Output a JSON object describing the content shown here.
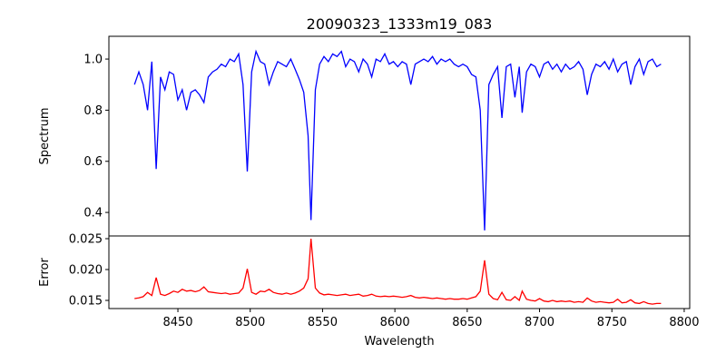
{
  "chart_data": {
    "type": "line",
    "title": "20090323_1333m19_083",
    "xlabel": "Wavelength",
    "xlim": [
      8402.3,
      8803.8
    ],
    "xticks": [
      8450,
      8500,
      8550,
      8600,
      8650,
      8700,
      8750,
      8800
    ],
    "xtick_labels": [
      "8450",
      "8500",
      "8550",
      "8600",
      "8650",
      "8700",
      "8750",
      "8800"
    ],
    "x": [
      8420,
      8423,
      8426,
      8429,
      8432,
      8435,
      8438,
      8441,
      8444,
      8447,
      8450,
      8453,
      8456,
      8459,
      8462,
      8465,
      8468,
      8471,
      8474,
      8477,
      8480,
      8483,
      8486,
      8489,
      8492,
      8495,
      8498,
      8501,
      8504,
      8507,
      8510,
      8513,
      8516,
      8519,
      8522,
      8525,
      8528,
      8531,
      8534,
      8537,
      8540,
      8542,
      8545,
      8548,
      8551,
      8554,
      8557,
      8560,
      8563,
      8566,
      8569,
      8572,
      8575,
      8578,
      8581,
      8584,
      8587,
      8590,
      8593,
      8596,
      8599,
      8602,
      8605,
      8608,
      8611,
      8614,
      8617,
      8620,
      8623,
      8626,
      8629,
      8632,
      8635,
      8638,
      8641,
      8644,
      8647,
      8650,
      8653,
      8656,
      8659,
      8662,
      8665,
      8668,
      8671,
      8674,
      8677,
      8680,
      8683,
      8686,
      8688,
      8691,
      8694,
      8697,
      8700,
      8703,
      8706,
      8709,
      8712,
      8715,
      8718,
      8721,
      8724,
      8727,
      8730,
      8733,
      8736,
      8739,
      8742,
      8745,
      8748,
      8751,
      8754,
      8757,
      8760,
      8763,
      8766,
      8769,
      8772,
      8775,
      8778,
      8781,
      8784
    ],
    "panels": [
      {
        "name": "Spectrum",
        "ylabel": "Spectrum",
        "color": "#0000ff",
        "ylim": [
          0.308,
          1.089
        ],
        "yticks": [
          0.4,
          0.6,
          0.8,
          1.0
        ],
        "ytick_labels": [
          "0.4",
          "0.6",
          "0.8",
          "1.0"
        ],
        "y": [
          0.9,
          0.95,
          0.9,
          0.8,
          0.99,
          0.57,
          0.93,
          0.88,
          0.95,
          0.94,
          0.84,
          0.88,
          0.8,
          0.87,
          0.88,
          0.86,
          0.83,
          0.93,
          0.95,
          0.96,
          0.98,
          0.97,
          1.0,
          0.99,
          1.02,
          0.9,
          0.56,
          0.95,
          1.03,
          0.99,
          0.98,
          0.9,
          0.95,
          0.99,
          0.98,
          0.97,
          1.0,
          0.96,
          0.92,
          0.87,
          0.7,
          0.37,
          0.88,
          0.98,
          1.01,
          0.99,
          1.02,
          1.01,
          1.03,
          0.97,
          1.0,
          0.99,
          0.95,
          1.0,
          0.98,
          0.93,
          1.0,
          0.99,
          1.02,
          0.98,
          0.99,
          0.97,
          0.99,
          0.98,
          0.9,
          0.98,
          0.99,
          1.0,
          0.99,
          1.01,
          0.98,
          1.0,
          0.99,
          1.0,
          0.98,
          0.97,
          0.98,
          0.97,
          0.94,
          0.93,
          0.8,
          0.33,
          0.9,
          0.94,
          0.97,
          0.77,
          0.97,
          0.98,
          0.85,
          0.97,
          0.79,
          0.95,
          0.98,
          0.97,
          0.93,
          0.98,
          0.99,
          0.96,
          0.98,
          0.95,
          0.98,
          0.96,
          0.97,
          0.99,
          0.96,
          0.86,
          0.94,
          0.98,
          0.97,
          0.99,
          0.96,
          1.0,
          0.95,
          0.98,
          0.99,
          0.9,
          0.97,
          1.0,
          0.94,
          0.99,
          1.0,
          0.97,
          0.98
        ]
      },
      {
        "name": "Error",
        "ylabel": "Error",
        "color": "#ff0000",
        "ylim": [
          0.01368,
          0.02544
        ],
        "yticks": [
          0.015,
          0.02,
          0.025
        ],
        "ytick_labels": [
          "0.015",
          "0.020",
          "0.025"
        ],
        "y": [
          0.0153,
          0.0154,
          0.0156,
          0.0163,
          0.0158,
          0.0187,
          0.016,
          0.0158,
          0.0161,
          0.0165,
          0.0163,
          0.0168,
          0.0165,
          0.0166,
          0.0164,
          0.0166,
          0.0172,
          0.0164,
          0.0163,
          0.0162,
          0.0161,
          0.0162,
          0.016,
          0.0161,
          0.0162,
          0.017,
          0.0201,
          0.0163,
          0.016,
          0.0165,
          0.0164,
          0.0168,
          0.0163,
          0.0161,
          0.016,
          0.0162,
          0.016,
          0.0162,
          0.0165,
          0.017,
          0.0185,
          0.025,
          0.017,
          0.0162,
          0.0159,
          0.016,
          0.0159,
          0.0158,
          0.0159,
          0.016,
          0.0158,
          0.0159,
          0.016,
          0.0157,
          0.0158,
          0.016,
          0.0157,
          0.0156,
          0.0157,
          0.0156,
          0.0157,
          0.0156,
          0.0155,
          0.0156,
          0.0158,
          0.0155,
          0.0154,
          0.0155,
          0.0154,
          0.0153,
          0.0154,
          0.0153,
          0.0152,
          0.0153,
          0.0152,
          0.0152,
          0.0153,
          0.0152,
          0.0154,
          0.0156,
          0.0165,
          0.0215,
          0.016,
          0.0153,
          0.0151,
          0.0163,
          0.0151,
          0.015,
          0.0156,
          0.015,
          0.0165,
          0.0152,
          0.015,
          0.0149,
          0.0153,
          0.0149,
          0.0148,
          0.015,
          0.0148,
          0.0149,
          0.0148,
          0.0149,
          0.0147,
          0.0148,
          0.0147,
          0.0154,
          0.0149,
          0.0147,
          0.0148,
          0.0147,
          0.0146,
          0.0147,
          0.0152,
          0.0146,
          0.0147,
          0.0151,
          0.0146,
          0.0145,
          0.0148,
          0.0145,
          0.0144,
          0.0145,
          0.0145
        ]
      }
    ]
  }
}
